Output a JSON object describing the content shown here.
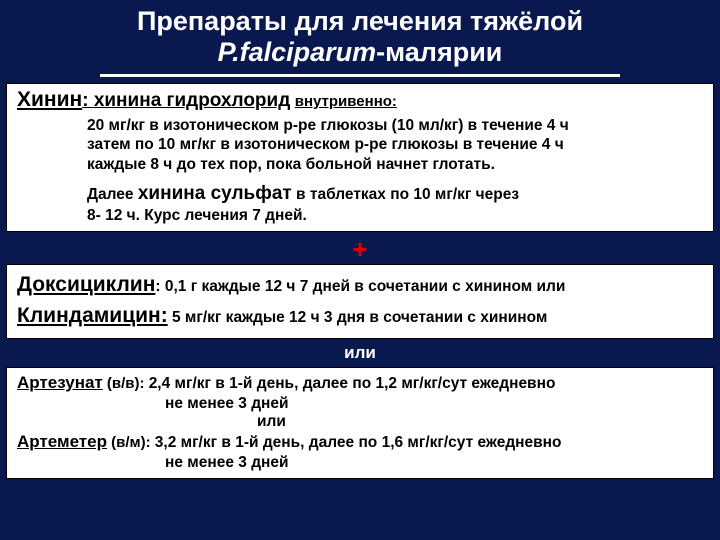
{
  "title_line1": "Препараты для лечения тяжёлой",
  "title_line2_em": "P.falciparum",
  "title_line2_rest": "-малярии",
  "quinine": {
    "name": "Хинин",
    "form": "хинина гидрохлорид",
    "route": "внутривенно:",
    "dose1": "20 мг/кг в изотоническом р-ре глюкозы (10 мл/кг) в течение 4 ч",
    "dose2": "затем по 10 мг/кг в изотоническом р-ре глюкозы в течение 4 ч",
    "dose3": "каждые 8 ч до тех пор, пока больной начнет глотать.",
    "then_prefix": "Далее ",
    "sulfate": "хинина сульфат",
    "then_suffix": " в таблетках по 10 мг/кг через",
    "course": "8- 12 ч. Курс лечения 7 дней."
  },
  "plus": "+",
  "doxy": {
    "name": "Доксициклин",
    "text": ": 0,1 г каждые 12 ч 7 дней в сочетании с хинином или"
  },
  "clinda": {
    "name": "Клиндамицин:",
    "text": " 5 мг/кг каждые 12 ч 3 дня в сочетании с хинином"
  },
  "or_label": "или",
  "artesunate": {
    "name": "Артезунат",
    "route": " (в/в): ",
    "text1": " 2,4 мг/кг в 1-й день, далее по 1,2 мг/кг/сут ежедневно",
    "text2": "не менее 3 дней",
    "or": "или"
  },
  "artemether": {
    "name": "Артеметер",
    "route": " (в/м): ",
    "text1": "3,2 мг/кг в 1-й день, далее по 1,6 мг/кг/сут ежедневно",
    "text2": "не менее 3  дней"
  }
}
